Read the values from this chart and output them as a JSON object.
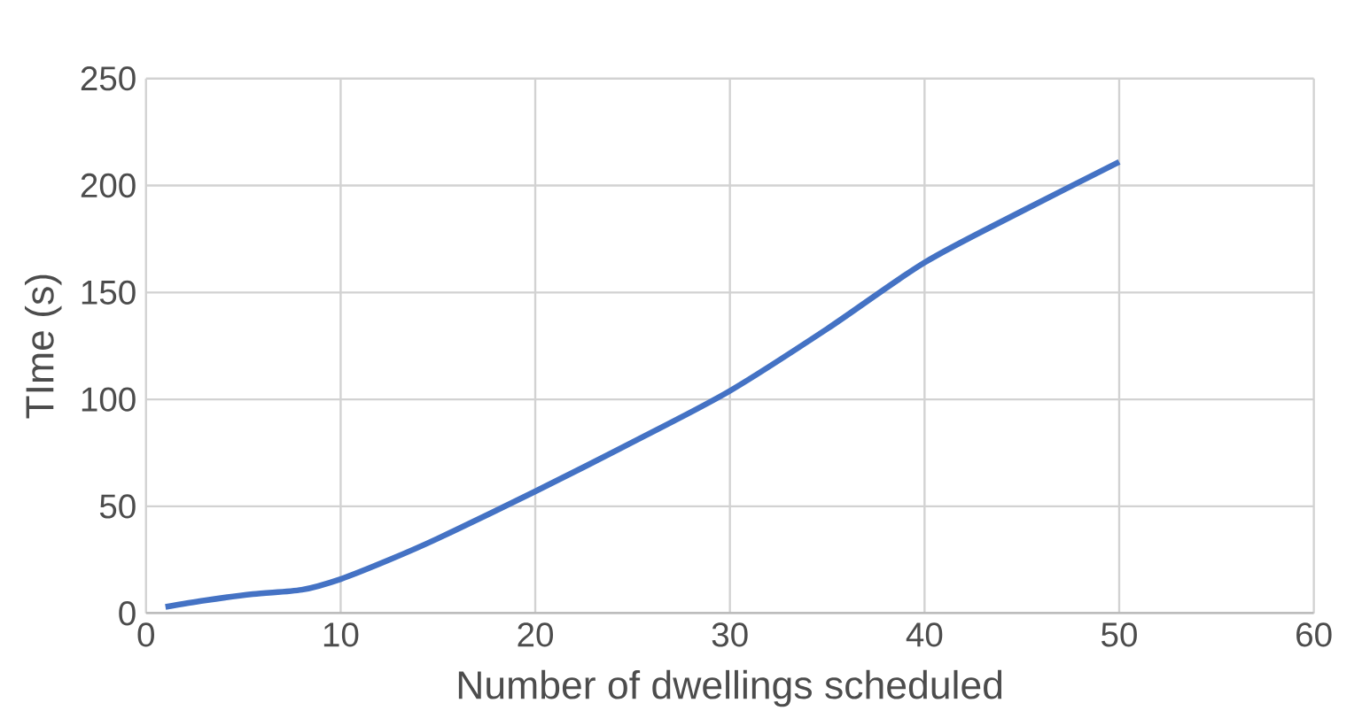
{
  "chart_data": {
    "type": "line",
    "xlabel": "Number of dwellings scheduled",
    "ylabel": "TIme (s)",
    "x": [
      1,
      3,
      5.5,
      8,
      10,
      12.5,
      15,
      20,
      25,
      30,
      35,
      40,
      45,
      50
    ],
    "series": [
      {
        "color": "#4472c4",
        "values": [
          3,
          6,
          9,
          11,
          16,
          25,
          35,
          57,
          80,
          104,
          133,
          164,
          188,
          211
        ]
      }
    ],
    "xlim": [
      0,
      60
    ],
    "xticks": [
      0,
      10,
      20,
      30,
      40,
      50,
      60
    ],
    "ylim": [
      0,
      250
    ],
    "yticks": [
      0,
      50,
      100,
      150,
      200,
      250
    ],
    "grid": true,
    "marker": "none",
    "line_style": "solid"
  }
}
